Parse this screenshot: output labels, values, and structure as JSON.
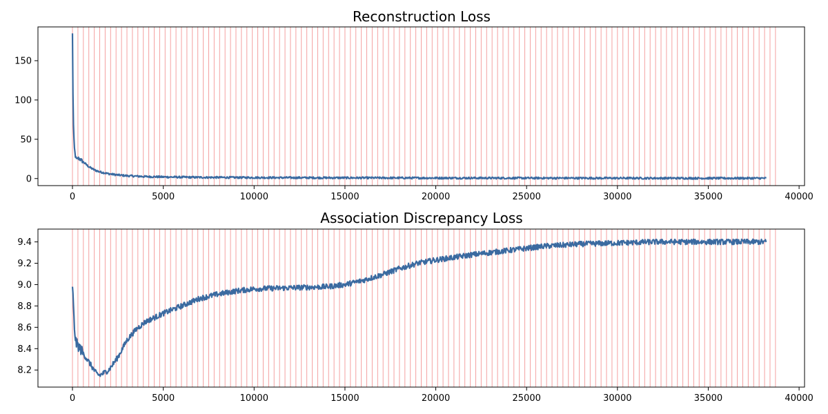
{
  "colors": {
    "line": "#3b6aa0",
    "epoch_lines": "#f4a0a0",
    "axes": "#000000",
    "background": "#ffffff"
  },
  "chart_data": [
    {
      "type": "line",
      "title": "Reconstruction Loss",
      "xlabel": "",
      "ylabel": "",
      "xlim": [
        -1900,
        40300
      ],
      "ylim": [
        -9,
        193
      ],
      "xticks": [
        0,
        5000,
        10000,
        15000,
        20000,
        25000,
        30000,
        35000,
        40000
      ],
      "xtick_labels": [
        "0",
        "5000",
        "10000",
        "15000",
        "20000",
        "25000",
        "30000",
        "35000",
        "40000"
      ],
      "yticks": [
        0,
        50,
        100,
        150
      ],
      "ytick_labels": [
        "0",
        "50",
        "100",
        "150"
      ],
      "vertical_lines": {
        "start": 0,
        "step": 300,
        "end": 38900
      },
      "grid": false,
      "series": [
        {
          "x": [
            0,
            20,
            40,
            60,
            100,
            150,
            200,
            250,
            300,
            400,
            500,
            700,
            900,
            1200,
            1500,
            2000,
            2500,
            3000,
            4000,
            5000,
            7000,
            10000,
            15000,
            20000,
            25000,
            30000,
            35000,
            38200
          ],
          "y": [
            184,
            120,
            90,
            60,
            40,
            30,
            25,
            24,
            26,
            25,
            23,
            19,
            15,
            11,
            8.5,
            6,
            4.5,
            3.5,
            2.5,
            2.0,
            1.5,
            1.2,
            0.9,
            0.7,
            0.6,
            0.5,
            0.4,
            0.4
          ],
          "noise": 1.2
        }
      ]
    },
    {
      "type": "line",
      "title": "Association Discrepancy Loss",
      "xlabel": "",
      "ylabel": "",
      "xlim": [
        -1900,
        40300
      ],
      "ylim": [
        8.04,
        9.52
      ],
      "xticks": [
        0,
        5000,
        10000,
        15000,
        20000,
        25000,
        30000,
        35000,
        40000
      ],
      "xtick_labels": [
        "0",
        "5000",
        "10000",
        "15000",
        "20000",
        "25000",
        "30000",
        "35000",
        "40000"
      ],
      "yticks": [
        8.2,
        8.4,
        8.6,
        8.8,
        9.0,
        9.2,
        9.4
      ],
      "ytick_labels": [
        "8.2",
        "8.4",
        "8.6",
        "8.8",
        "9.0",
        "9.2",
        "9.4"
      ],
      "vertical_lines": {
        "start": 0,
        "step": 300,
        "end": 38900
      },
      "grid": false,
      "series": [
        {
          "x": [
            0,
            50,
            100,
            200,
            300,
            500,
            800,
            1000,
            1300,
            1500,
            2000,
            2500,
            3000,
            3500,
            4000,
            5000,
            6000,
            7000,
            8000,
            9000,
            10000,
            12000,
            14000,
            15000,
            16000,
            17000,
            18000,
            19000,
            20000,
            22000,
            24000,
            26000,
            28000,
            30000,
            32000,
            34000,
            36000,
            38200
          ],
          "y": [
            9.0,
            8.8,
            8.6,
            8.45,
            8.43,
            8.38,
            8.3,
            8.25,
            8.17,
            8.15,
            8.2,
            8.32,
            8.48,
            8.58,
            8.65,
            8.73,
            8.8,
            8.87,
            8.91,
            8.94,
            8.96,
            8.97,
            8.98,
            9.0,
            9.04,
            9.09,
            9.15,
            9.2,
            9.23,
            9.28,
            9.32,
            9.36,
            9.38,
            9.39,
            9.4,
            9.4,
            9.4,
            9.4
          ],
          "noise": 0.025
        }
      ]
    }
  ]
}
